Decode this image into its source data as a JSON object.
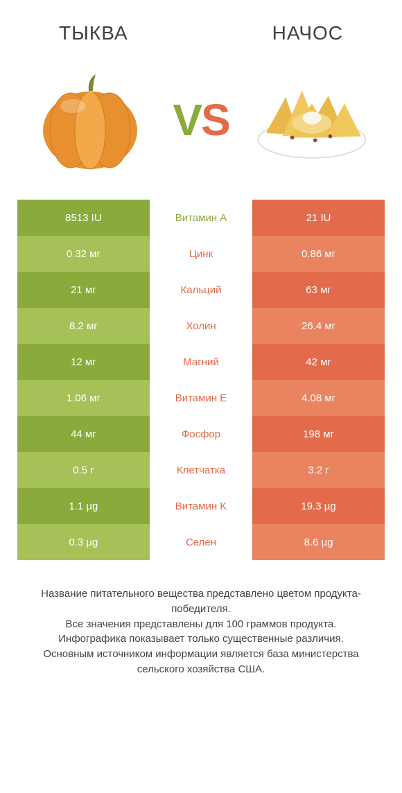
{
  "colors": {
    "green_dark": "#8aaa3b",
    "green_light": "#a6c158",
    "orange_dark": "#e36a4a",
    "orange_light": "#ea8360",
    "title_text": "#3f3f3f",
    "footer_text": "#444444",
    "white": "#ffffff",
    "background": "#ffffff"
  },
  "titles": {
    "left": "ТЫКВА",
    "right": "НАЧОС"
  },
  "vs": {
    "v": "V",
    "s": "S"
  },
  "typography": {
    "title_fontsize": 28,
    "vs_fontsize": 64,
    "cell_fontsize": 15,
    "footer_fontsize": 15
  },
  "rows": [
    {
      "left": "8513 IU",
      "mid": "Витамин A",
      "right": "21 IU",
      "winner": "left"
    },
    {
      "left": "0.32 мг",
      "mid": "Цинк",
      "right": "0.86 мг",
      "winner": "right"
    },
    {
      "left": "21 мг",
      "mid": "Кальций",
      "right": "63 мг",
      "winner": "right"
    },
    {
      "left": "8.2 мг",
      "mid": "Холин",
      "right": "26.4 мг",
      "winner": "right"
    },
    {
      "left": "12 мг",
      "mid": "Магний",
      "right": "42 мг",
      "winner": "right"
    },
    {
      "left": "1.06 мг",
      "mid": "Витамин E",
      "right": "4.08 мг",
      "winner": "right"
    },
    {
      "left": "44 мг",
      "mid": "Фосфор",
      "right": "198 мг",
      "winner": "right"
    },
    {
      "left": "0.5 г",
      "mid": "Клетчатка",
      "right": "3.2 г",
      "winner": "right"
    },
    {
      "left": "1.1 µg",
      "mid": "Витамин K",
      "right": "19.3 µg",
      "winner": "right"
    },
    {
      "left": "0.3 µg",
      "mid": "Селен",
      "right": "8.6 µg",
      "winner": "right"
    }
  ],
  "footer": {
    "l1": "Название питательного вещества представлено цветом продукта-победителя.",
    "l2": "Все значения представлены для 100 граммов продукта.",
    "l3": "Инфографика показывает только существенные различия.",
    "l4": "Основным источником информации является база министерства сельского хозяйства США."
  }
}
